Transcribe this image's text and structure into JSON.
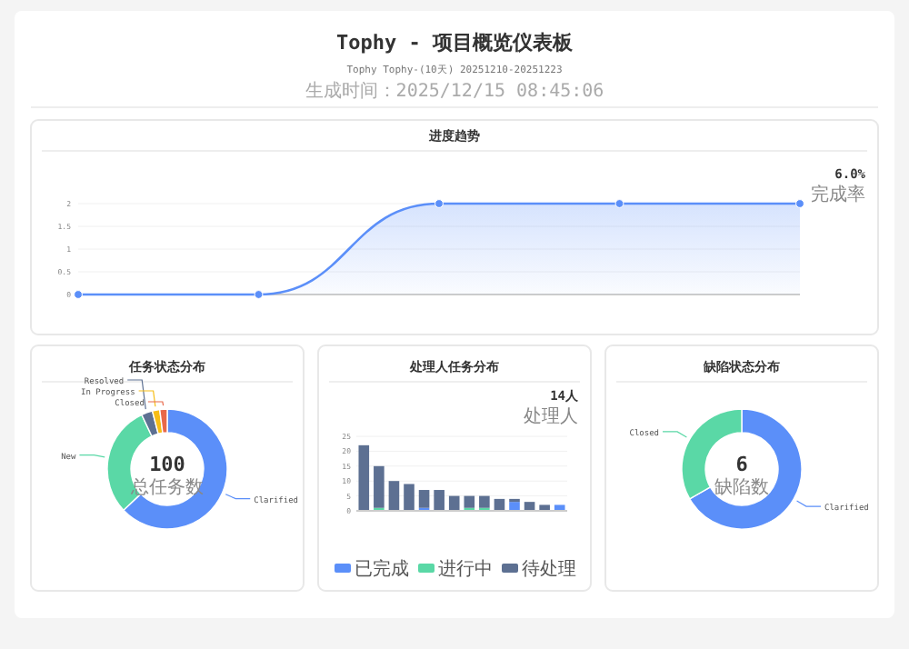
{
  "chart_data": [
    {
      "type": "other",
      "title": "Tophy - 项目概览仪表板",
      "subtitle": "Tophy Tophy-(10天) 20251210-20251223",
      "annotations": [
        "生成时间：2025/12/15 08:45:06"
      ]
    },
    {
      "type": "area",
      "title": "进度趋势",
      "categories": [
        null,
        null,
        null,
        null,
        null
      ],
      "series": [
        {
          "color": "#5b8ff9",
          "values": [
            0,
            0,
            2,
            2,
            2
          ]
        }
      ],
      "ylim": [
        0,
        2
      ],
      "yticks": [
        0,
        0.5,
        1,
        1.5,
        2
      ],
      "marker": "circle",
      "grid": "y",
      "annotations": [
        "6.0%",
        "完成率"
      ]
    },
    {
      "type": "donut",
      "title": "任务状态分布",
      "categories": [
        "Clarified",
        "New",
        "Resolved",
        "In Progress",
        "Closed"
      ],
      "values": [
        63,
        30,
        3,
        2,
        2
      ],
      "colors": [
        "#5b8ff9",
        "#5ad8a6",
        "#5d7092",
        "#f6bd16",
        "#e8684a"
      ],
      "annotations": [
        "100",
        "总任务数"
      ]
    },
    {
      "type": "bar",
      "title": "处理人任务分布",
      "stacked": true,
      "categories": [
        null,
        null,
        null,
        null,
        null,
        null,
        null,
        null,
        null,
        null,
        null,
        null,
        null,
        null
      ],
      "series": [
        {
          "name": "已完成",
          "color": "#5b8ff9",
          "values": [
            0,
            0,
            0,
            0,
            1,
            0,
            0,
            0,
            0,
            0,
            3,
            0,
            0,
            2
          ]
        },
        {
          "name": "进行中",
          "color": "#5ad8a6",
          "values": [
            0,
            1,
            0,
            0,
            0,
            0,
            0,
            1,
            1,
            0,
            0,
            0,
            0,
            0
          ]
        },
        {
          "name": "待处理",
          "color": "#5d7092",
          "values": [
            22,
            14,
            10,
            9,
            6,
            7,
            5,
            4,
            4,
            4,
            1,
            3,
            2,
            0
          ]
        }
      ],
      "ylim": [
        0,
        25
      ],
      "yticks": [
        0,
        5,
        10,
        15,
        20,
        25
      ],
      "grid": "y",
      "legend": "bottom",
      "annotations": [
        "14人",
        "处理人"
      ]
    },
    {
      "type": "donut",
      "title": "缺陷状态分布",
      "categories": [
        "Clarified",
        "Closed"
      ],
      "values": [
        66.7,
        33.3
      ],
      "colors": [
        "#5b8ff9",
        "#5ad8a6"
      ],
      "annotations": [
        "6",
        "缺陷数"
      ]
    }
  ]
}
